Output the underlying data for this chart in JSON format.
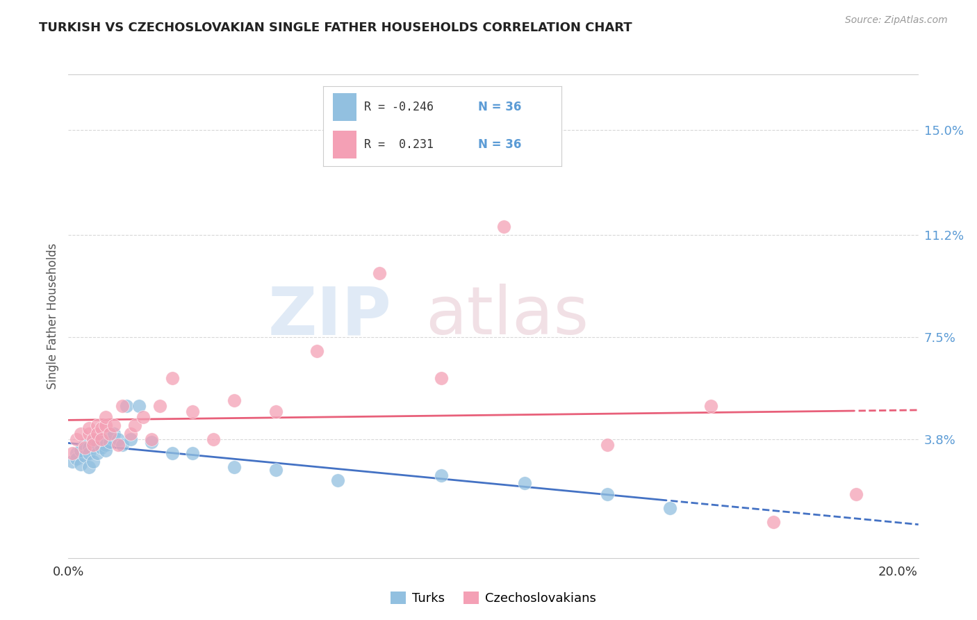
{
  "title": "TURKISH VS CZECHOSLOVAKIAN SINGLE FATHER HOUSEHOLDS CORRELATION CHART",
  "source": "Source: ZipAtlas.com",
  "ylabel": "Single Father Households",
  "ytick_labels": [
    "15.0%",
    "11.2%",
    "7.5%",
    "3.8%"
  ],
  "ytick_vals": [
    0.15,
    0.112,
    0.075,
    0.038
  ],
  "legend_turks": "Turks",
  "legend_czech": "Czechoslovakians",
  "color_turks": "#92c0e0",
  "color_czech": "#f4a0b5",
  "line_color_turks": "#4472c4",
  "line_color_czech": "#e8607a",
  "turks_x": [
    0.001,
    0.002,
    0.002,
    0.003,
    0.003,
    0.004,
    0.004,
    0.005,
    0.005,
    0.005,
    0.006,
    0.006,
    0.007,
    0.007,
    0.008,
    0.008,
    0.009,
    0.009,
    0.01,
    0.01,
    0.011,
    0.012,
    0.013,
    0.014,
    0.015,
    0.017,
    0.02,
    0.025,
    0.03,
    0.04,
    0.05,
    0.065,
    0.09,
    0.11,
    0.13,
    0.145
  ],
  "turks_y": [
    0.03,
    0.033,
    0.031,
    0.034,
    0.029,
    0.036,
    0.032,
    0.035,
    0.033,
    0.028,
    0.037,
    0.03,
    0.036,
    0.033,
    0.038,
    0.035,
    0.036,
    0.034,
    0.04,
    0.037,
    0.04,
    0.038,
    0.036,
    0.05,
    0.038,
    0.05,
    0.037,
    0.033,
    0.033,
    0.028,
    0.027,
    0.023,
    0.025,
    0.022,
    0.018,
    0.013
  ],
  "czech_x": [
    0.001,
    0.002,
    0.003,
    0.004,
    0.005,
    0.005,
    0.006,
    0.006,
    0.007,
    0.007,
    0.008,
    0.008,
    0.009,
    0.009,
    0.01,
    0.011,
    0.012,
    0.013,
    0.015,
    0.016,
    0.018,
    0.02,
    0.022,
    0.025,
    0.03,
    0.035,
    0.04,
    0.05,
    0.06,
    0.075,
    0.09,
    0.105,
    0.13,
    0.155,
    0.17,
    0.19
  ],
  "czech_y": [
    0.033,
    0.038,
    0.04,
    0.035,
    0.04,
    0.042,
    0.038,
    0.036,
    0.043,
    0.04,
    0.042,
    0.038,
    0.043,
    0.046,
    0.04,
    0.043,
    0.036,
    0.05,
    0.04,
    0.043,
    0.046,
    0.038,
    0.05,
    0.06,
    0.048,
    0.038,
    0.052,
    0.048,
    0.07,
    0.098,
    0.06,
    0.115,
    0.036,
    0.05,
    0.008,
    0.018
  ],
  "xlim": [
    0.0,
    0.205
  ],
  "ylim": [
    -0.005,
    0.17
  ],
  "background_color": "#ffffff",
  "grid_color": "#d8d8d8"
}
